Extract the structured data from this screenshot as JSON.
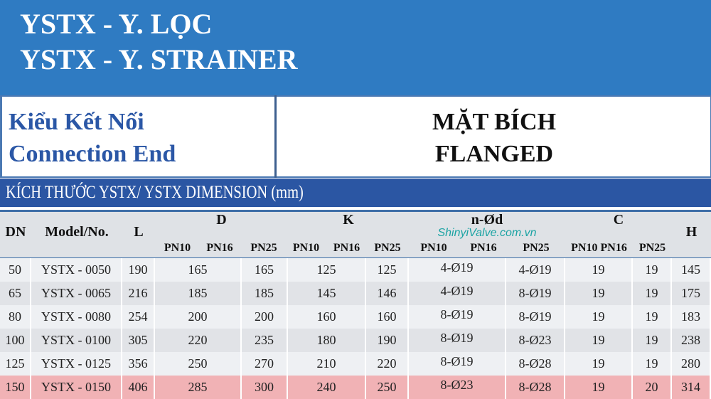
{
  "header": {
    "title_vi": "YSTX - Y. LỌC",
    "title_en": "YSTX - Y. STRAINER"
  },
  "connection": {
    "label_vi": "Kiểu Kết Nối",
    "label_en": "Connection End",
    "value_vi": "MẶT BÍCH",
    "value_en": "FLANGED"
  },
  "dimension_title": "KÍCH THƯỚC YSTX/ YSTX DIMENSION (mm)",
  "watermark": "ShinyiValve.com.vn",
  "table": {
    "headers": {
      "dn": "DN",
      "model": "Model/No.",
      "l": "L",
      "d": "D",
      "k": "K",
      "nd": "n-Ød",
      "c": "C",
      "h": "H",
      "sub": [
        "PN10",
        "PN16",
        "PN25",
        "PN10",
        "PN16",
        "PN25",
        "PN10",
        "PN16",
        "PN25",
        "PN10 PN16",
        "PN25"
      ]
    },
    "rows": [
      [
        "50",
        "YSTX - 0050",
        "190",
        "165",
        "165",
        "125",
        "125",
        "4-Ø19",
        "4-Ø19",
        "19",
        "19",
        "145"
      ],
      [
        "65",
        "YSTX - 0065",
        "216",
        "185",
        "185",
        "145",
        "146",
        "4-Ø19",
        "8-Ø19",
        "19",
        "19",
        "175"
      ],
      [
        "80",
        "YSTX - 0080",
        "254",
        "200",
        "200",
        "160",
        "160",
        "8-Ø19",
        "8-Ø19",
        "19",
        "19",
        "183"
      ],
      [
        "100",
        "YSTX - 0100",
        "305",
        "220",
        "235",
        "180",
        "190",
        "8-Ø19",
        "8-Ø23",
        "19",
        "19",
        "238"
      ],
      [
        "125",
        "YSTX - 0125",
        "356",
        "250",
        "270",
        "210",
        "220",
        "8-Ø19",
        "8-Ø28",
        "19",
        "19",
        "280"
      ],
      [
        "150",
        "YSTX - 0150",
        "406",
        "285",
        "300",
        "240",
        "250",
        "8-Ø23",
        "8-Ø28",
        "19",
        "20",
        "314"
      ]
    ],
    "highlight_row": 5
  },
  "colors": {
    "top": "#2f7bc2",
    "band": "#2b56a3",
    "label": "#2b57a6",
    "row_a": "#eef0f3",
    "row_b": "#e1e3e7",
    "highlight": "#f1b2b5"
  }
}
